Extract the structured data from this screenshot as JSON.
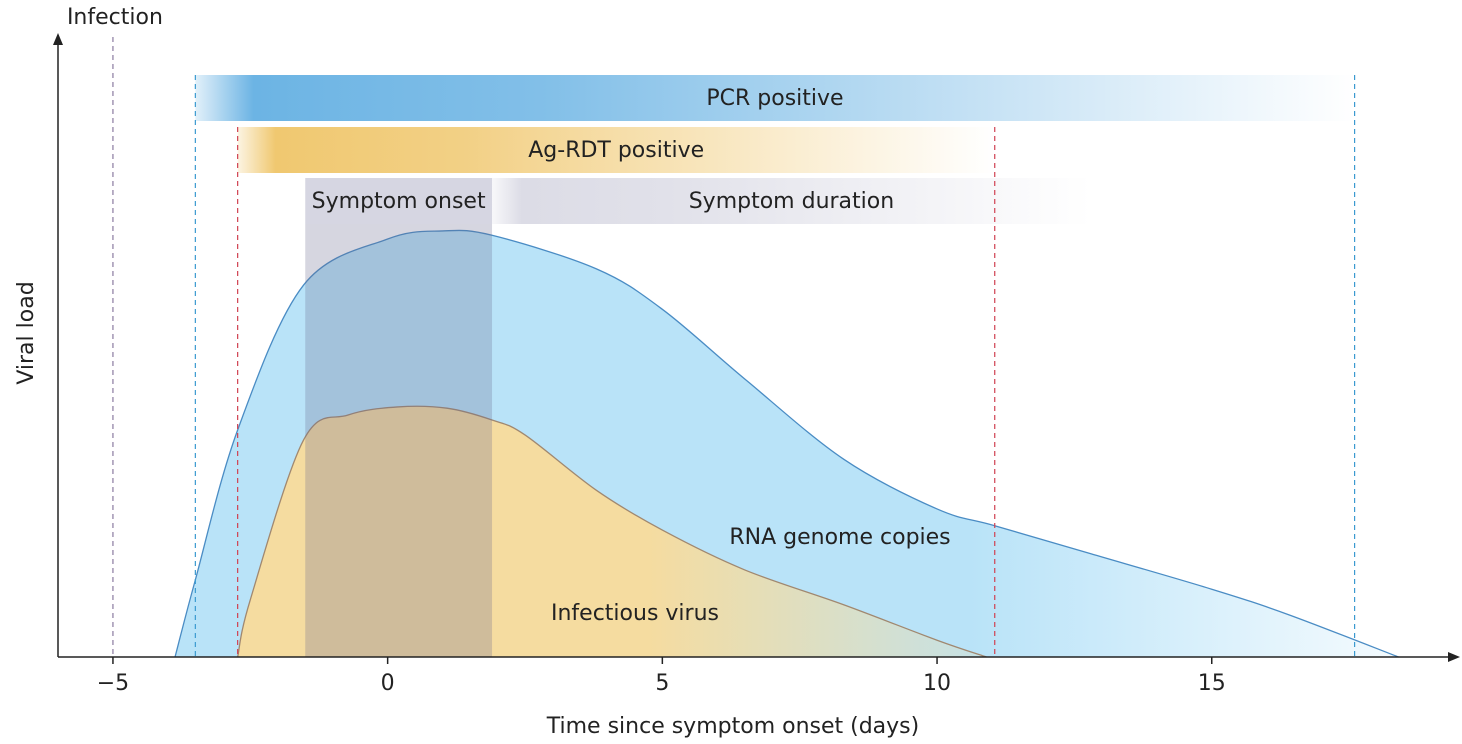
{
  "chart_data": {
    "type": "area",
    "x_label": "Time since symptom onset (days)",
    "y_label": "Viral load",
    "annotation": {
      "text": "Infection",
      "x": -5
    },
    "xlim": [
      -6,
      19.3
    ],
    "ylim": [
      0,
      100
    ],
    "xticks": [
      {
        "value": -5,
        "label": "−5"
      },
      0,
      5,
      10,
      15
    ],
    "series": [
      {
        "name": "RNA genome copies",
        "color": "#b9e3f8",
        "line_color": "#4a8cc4",
        "x": [
          -3.87,
          -3.5,
          -2.73,
          -1.53,
          0,
          1,
          1.9,
          3.8,
          5,
          6.5,
          8.3,
          10,
          11.05,
          12.8,
          15,
          16.4,
          18.4
        ],
        "values": [
          0,
          12.4,
          36.5,
          59.8,
          67.2,
          68.5,
          67.8,
          62.4,
          55.9,
          44.7,
          31.8,
          23.8,
          21.1,
          16.6,
          10.9,
          6.8,
          0
        ]
      },
      {
        "name": "Infectious virus",
        "color": "#f5dca0",
        "line_color": "#a08870",
        "x": [
          -2.73,
          -2.5,
          -1.53,
          -0.72,
          0.18,
          1.08,
          1.9,
          2.5,
          3.8,
          5,
          6.5,
          8.3,
          10,
          10.9
        ],
        "values": [
          0,
          9.2,
          34.9,
          38.9,
          40.2,
          40.0,
          38.1,
          35.7,
          26.8,
          20.4,
          14.0,
          8.4,
          2.7,
          0
        ]
      }
    ],
    "bands": [
      {
        "label": "PCR positive",
        "start": -3.5,
        "end": 17.6,
        "color": "#6cb4e4",
        "line_color": "#3a9ad0"
      },
      {
        "label": "Ag-RDT positive",
        "start": -2.73,
        "end": 11.05,
        "color": "#f0c870",
        "line_color": "#d04050"
      },
      {
        "label": "Symptom onset",
        "start": -1.5,
        "end": 1.9,
        "color": "#d6d6e2"
      },
      {
        "label": "Symptom duration",
        "start": 1.9,
        "end": 12.8,
        "color": "#dcdce6"
      }
    ]
  }
}
